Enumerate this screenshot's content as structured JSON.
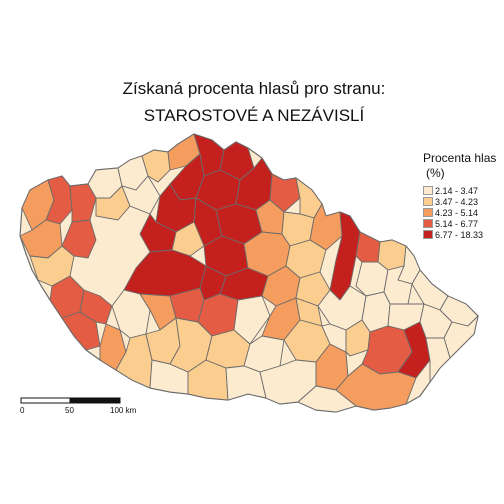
{
  "map": {
    "title_line1": "Získaná procenta hlasů pro stranu:",
    "title_line2": "STAROSTOVÉ A NEZÁVISLÍ",
    "legend": {
      "title": "Procenta hlas",
      "unit": "(%)",
      "items": [
        {
          "label": "2.14 - 3.47",
          "color": "#fdebd0"
        },
        {
          "label": "3.47 - 4.23",
          "color": "#fbcd8f"
        },
        {
          "label": "4.23 - 5.14",
          "color": "#f59d5e"
        },
        {
          "label": "5.14 - 6.77",
          "color": "#e35c43"
        },
        {
          "label": "6.77 - 18.33",
          "color": "#c4211e"
        }
      ]
    },
    "scalebar": {
      "labels": [
        "0",
        "50",
        "100 km"
      ]
    },
    "border_color": "#6b6b6b"
  }
}
